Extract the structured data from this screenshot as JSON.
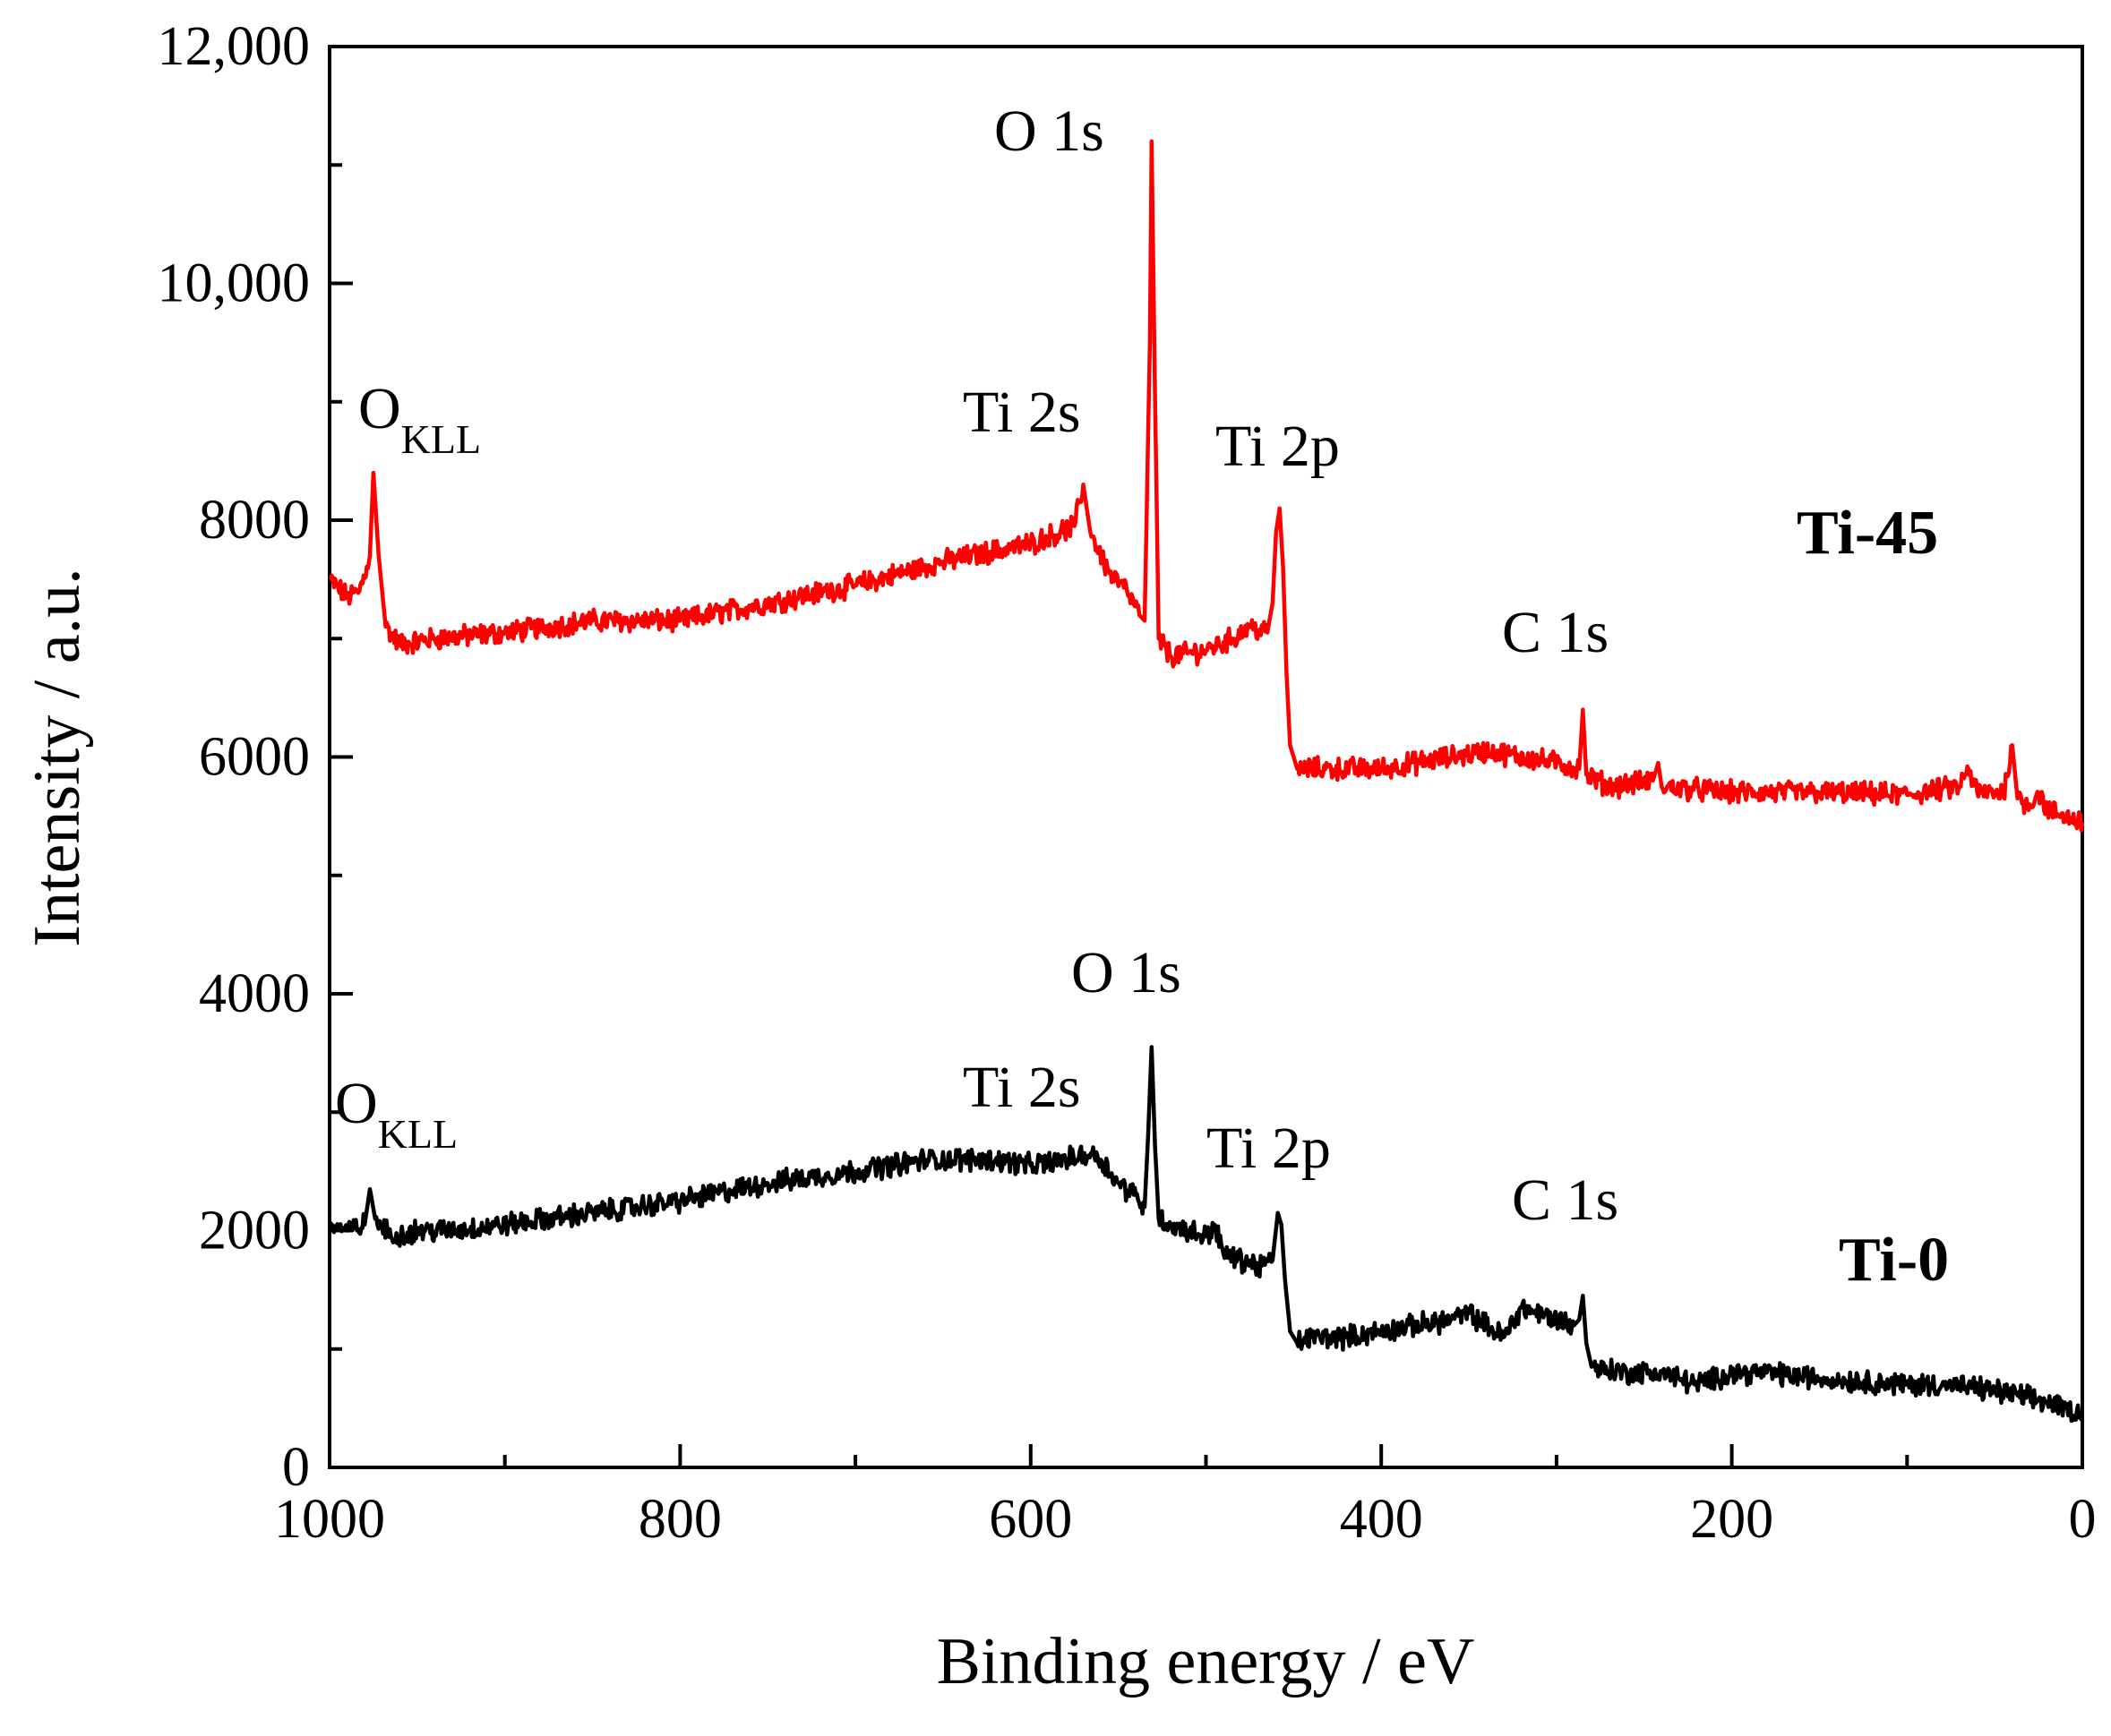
{
  "chart_data": {
    "type": "line",
    "xlabel": "Binding energy / eV",
    "ylabel": "Intensity / a.u.",
    "xlim": [
      1000,
      0
    ],
    "ylim": [
      0,
      12000
    ],
    "x_ticks": [
      1000,
      800,
      600,
      400,
      200,
      0
    ],
    "x_tick_labels": [
      "1000",
      "800",
      "600",
      "400",
      "200",
      "0"
    ],
    "y_ticks": [
      0,
      2000,
      4000,
      6000,
      8000,
      10000,
      12000
    ],
    "y_tick_labels": [
      "0",
      "2000",
      "4000",
      "6000",
      "8000",
      "10,000",
      "12,000"
    ],
    "series": [
      {
        "name": "Ti-45",
        "color": "#ff0000",
        "points": [
          [
            1000,
            7500
          ],
          [
            990,
            7350
          ],
          [
            983,
            7400
          ],
          [
            977,
            7700
          ],
          [
            975,
            8400
          ],
          [
            972,
            7700
          ],
          [
            968,
            7100
          ],
          [
            960,
            6950
          ],
          [
            940,
            7000
          ],
          [
            900,
            7050
          ],
          [
            850,
            7150
          ],
          [
            800,
            7150
          ],
          [
            750,
            7300
          ],
          [
            700,
            7450
          ],
          [
            650,
            7650
          ],
          [
            600,
            7800
          ],
          [
            575,
            7950
          ],
          [
            570,
            8300
          ],
          [
            566,
            7900
          ],
          [
            555,
            7550
          ],
          [
            545,
            7400
          ],
          [
            538,
            7200
          ],
          [
            535,
            7150
          ],
          [
            532,
            9500
          ],
          [
            531,
            11200
          ],
          [
            529,
            9000
          ],
          [
            527,
            7000
          ],
          [
            520,
            6850
          ],
          [
            500,
            6900
          ],
          [
            485,
            7000
          ],
          [
            475,
            7100
          ],
          [
            465,
            7050
          ],
          [
            462,
            7300
          ],
          [
            460,
            7900
          ],
          [
            458,
            8100
          ],
          [
            456,
            7600
          ],
          [
            454,
            6700
          ],
          [
            452,
            6100
          ],
          [
            448,
            5900
          ],
          [
            440,
            5900
          ],
          [
            400,
            5900
          ],
          [
            360,
            6000
          ],
          [
            340,
            6050
          ],
          [
            300,
            5950
          ],
          [
            287,
            5900
          ],
          [
            285,
            6400
          ],
          [
            283,
            5850
          ],
          [
            270,
            5750
          ],
          [
            245,
            5800
          ],
          [
            242,
            5950
          ],
          [
            240,
            5750
          ],
          [
            200,
            5700
          ],
          [
            150,
            5700
          ],
          [
            100,
            5680
          ],
          [
            70,
            5750
          ],
          [
            65,
            5900
          ],
          [
            60,
            5700
          ],
          [
            45,
            5700
          ],
          [
            40,
            6100
          ],
          [
            37,
            5650
          ],
          [
            30,
            5600
          ],
          [
            25,
            5700
          ],
          [
            20,
            5550
          ],
          [
            10,
            5500
          ],
          [
            0,
            5450
          ]
        ]
      },
      {
        "name": "Ti-0",
        "color": "#000000",
        "points": [
          [
            1000,
            2050
          ],
          [
            990,
            2000
          ],
          [
            980,
            2050
          ],
          [
            977,
            2350
          ],
          [
            974,
            2100
          ],
          [
            965,
            1950
          ],
          [
            950,
            2000
          ],
          [
            930,
            2000
          ],
          [
            900,
            2050
          ],
          [
            850,
            2150
          ],
          [
            800,
            2250
          ],
          [
            750,
            2400
          ],
          [
            700,
            2500
          ],
          [
            660,
            2600
          ],
          [
            620,
            2600
          ],
          [
            600,
            2550
          ],
          [
            580,
            2600
          ],
          [
            565,
            2650
          ],
          [
            560,
            2600
          ],
          [
            550,
            2400
          ],
          [
            540,
            2300
          ],
          [
            535,
            2200
          ],
          [
            533,
            2800
          ],
          [
            531,
            3550
          ],
          [
            529,
            2700
          ],
          [
            527,
            2100
          ],
          [
            520,
            2050
          ],
          [
            500,
            1950
          ],
          [
            495,
            2050
          ],
          [
            490,
            1800
          ],
          [
            470,
            1700
          ],
          [
            462,
            1750
          ],
          [
            459,
            2150
          ],
          [
            457,
            2050
          ],
          [
            455,
            1600
          ],
          [
            452,
            1150
          ],
          [
            448,
            1050
          ],
          [
            440,
            1100
          ],
          [
            420,
            1100
          ],
          [
            400,
            1150
          ],
          [
            360,
            1250
          ],
          [
            350,
            1300
          ],
          [
            330,
            1100
          ],
          [
            320,
            1350
          ],
          [
            300,
            1250
          ],
          [
            290,
            1200
          ],
          [
            287,
            1250
          ],
          [
            285,
            1450
          ],
          [
            283,
            1050
          ],
          [
            280,
            850
          ],
          [
            260,
            800
          ],
          [
            240,
            800
          ],
          [
            220,
            700
          ],
          [
            200,
            800
          ],
          [
            180,
            800
          ],
          [
            150,
            750
          ],
          [
            100,
            700
          ],
          [
            80,
            700
          ],
          [
            50,
            650
          ],
          [
            20,
            550
          ],
          [
            0,
            450
          ]
        ]
      }
    ],
    "annotations": {
      "ti45": {
        "o1s": "O 1s",
        "ti2s": "Ti 2s",
        "ti2p": "Ti 2p",
        "c1s": "C 1s",
        "okll_main": "O",
        "okll_sub": "KLL"
      },
      "ti0": {
        "o1s": "O 1s",
        "ti2s": "Ti 2s",
        "ti2p": "Ti 2p",
        "c1s": "C 1s",
        "okll_main": "O",
        "okll_sub": "KLL"
      }
    },
    "series_labels": {
      "ti45": "Ti-45",
      "ti0": "Ti-0"
    }
  }
}
